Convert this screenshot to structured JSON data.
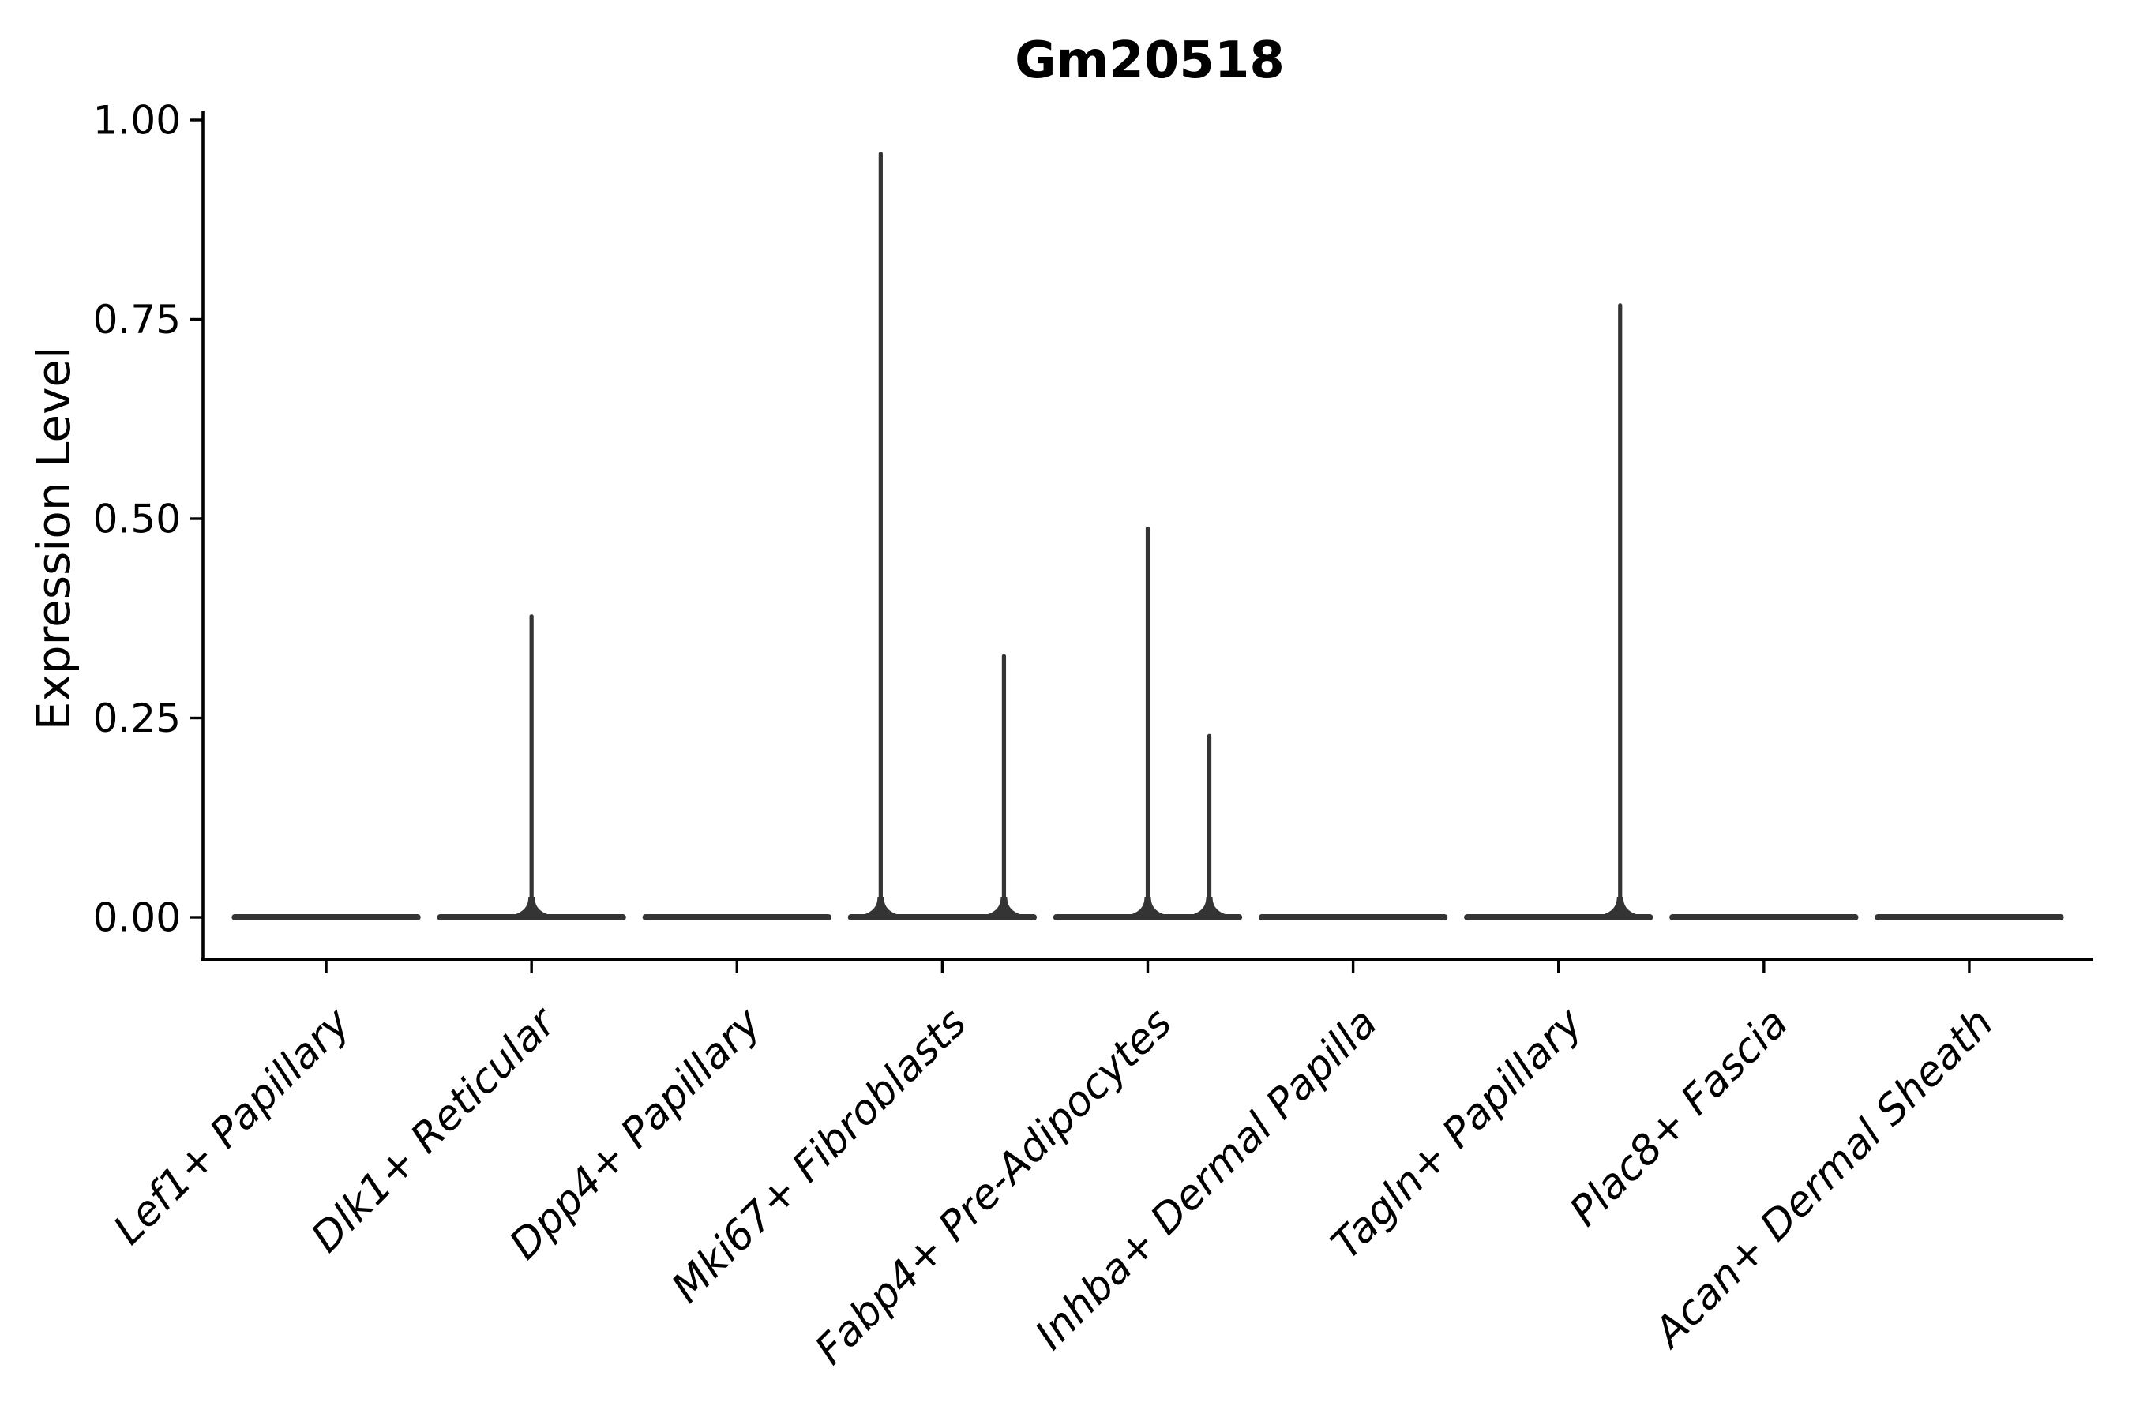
{
  "title": "Gm20518",
  "chart_data": {
    "type": "violin",
    "title": "Gm20518",
    "xlabel": "",
    "ylabel": "Expression Level",
    "ylim": [
      0,
      1.06
    ],
    "yticks": [
      0,
      0.25,
      0.5,
      0.75,
      1.0
    ],
    "ytick_labels": [
      "0.00",
      "0.25",
      "0.50",
      "0.75",
      "1.00"
    ],
    "categories": [
      "Lef1+ Papillary",
      "Dlk1+ Reticular",
      "Dpp4+ Papillary",
      "Mki67+ Fibroblasts",
      "Fabp4+ Pre-Adipocytes",
      "Inhba+ Dermal Papilla",
      "Tagln+ Papillary",
      "Plac8+ Fascia",
      "Acan+ Dermal Sheath"
    ],
    "violins": [
      {
        "category": "Lef1+ Papillary",
        "base_value": 0,
        "spikes": []
      },
      {
        "category": "Dlk1+ Reticular",
        "base_value": 0,
        "spikes": [
          {
            "x_offset": 0,
            "max": 0.38
          }
        ]
      },
      {
        "category": "Dpp4+ Papillary",
        "base_value": 0,
        "spikes": []
      },
      {
        "category": "Mki67+ Fibroblasts",
        "base_value": 0,
        "spikes": [
          {
            "x_offset": -0.3,
            "max": 0.96
          },
          {
            "x_offset": 0.3,
            "max": 0.33
          }
        ]
      },
      {
        "category": "Fabp4+ Pre-Adipocytes",
        "base_value": 0,
        "spikes": [
          {
            "x_offset": 0,
            "max": 0.49
          },
          {
            "x_offset": 0.3,
            "max": 0.23
          }
        ]
      },
      {
        "category": "Inhba+ Dermal Papilla",
        "base_value": 0,
        "spikes": []
      },
      {
        "category": "Tagln+ Papillary",
        "base_value": 0,
        "spikes": [
          {
            "x_offset": 0.3,
            "max": 0.77
          }
        ]
      },
      {
        "category": "Plac8+ Fascia",
        "base_value": 0,
        "spikes": []
      },
      {
        "category": "Acan+ Dermal Sheath",
        "base_value": 0,
        "spikes": []
      }
    ],
    "legend": null,
    "grid": false,
    "colors": {
      "violin": "#343434",
      "axis": "#000000",
      "text": "#000000",
      "background": "#ffffff"
    }
  }
}
